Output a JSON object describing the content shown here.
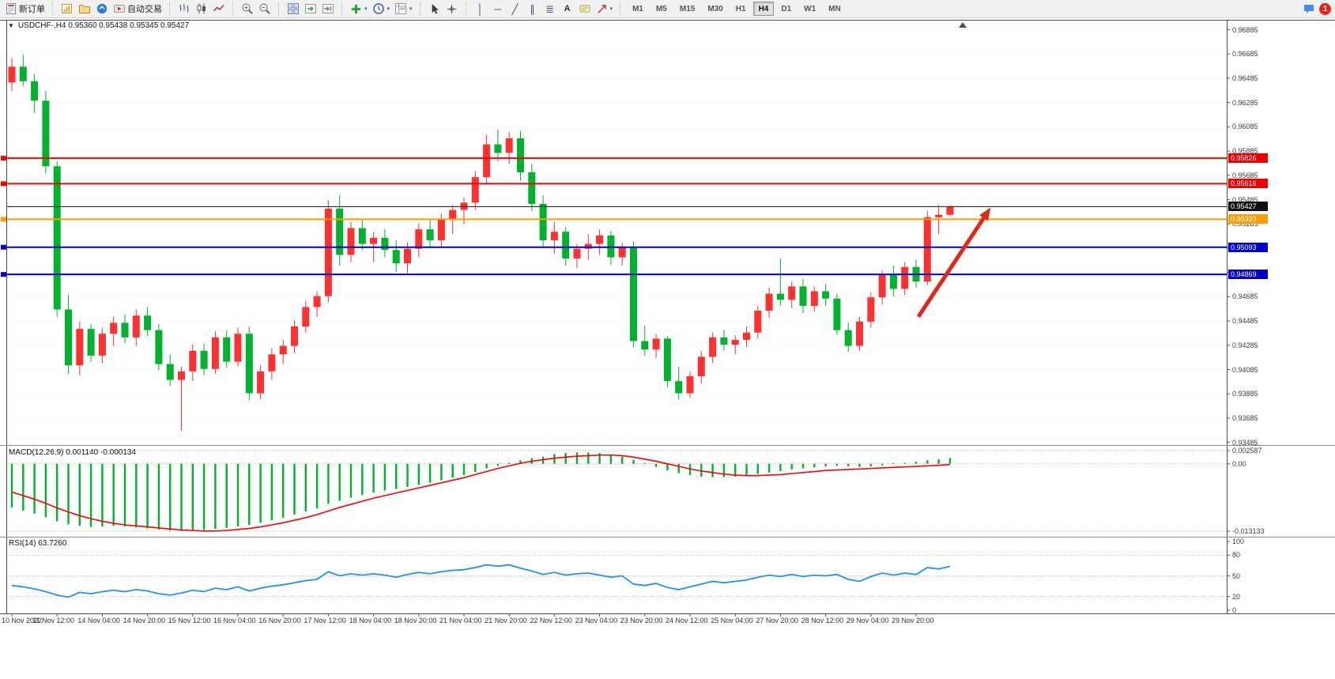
{
  "window": {
    "notification_count": "1"
  },
  "toolbar": {
    "new_order_label": "新订单",
    "autotrading_label": "自动交易",
    "timeframes": [
      "M1",
      "M5",
      "M15",
      "M30",
      "H1",
      "H4",
      "D1",
      "W1",
      "MN"
    ],
    "active_timeframe": "H4"
  },
  "glyphs": {
    "collapse": "▼",
    "dropdown": "▾",
    "vline": "│",
    "hline": "─",
    "trendline": "╱",
    "channel": "∥",
    "fibonacci": "≣",
    "text_tool": "A"
  },
  "chart": {
    "symbol_ohlc": "USDCHF-,H4 0.95360 0.95438 0.95345 0.95427"
  },
  "indicators": {
    "macd_label": "MACD(12,26,9) 0.001140 -0.000134",
    "macd_scale": [
      "0.002587",
      "0.00",
      "-0.013133"
    ],
    "rsi_label": "RSI(14) 63.7260",
    "rsi_scale": [
      "100",
      "80",
      "50",
      "20",
      "0"
    ]
  },
  "price_axis": {
    "ticks": [
      "0.96885",
      "0.96685",
      "0.96485",
      "0.96285",
      "0.96085",
      "0.95885",
      "0.95685",
      "0.95485",
      "0.95285",
      "0.95085",
      "0.94885",
      "0.94685",
      "0.94485",
      "0.94285",
      "0.94085",
      "0.93885",
      "0.93685",
      "0.93485"
    ],
    "badges": [
      {
        "label": "0.95826",
        "value": 0.95826,
        "color": "#ef0000",
        "name": "resistance-1-badge"
      },
      {
        "label": "0.95616",
        "value": 0.95616,
        "color": "#ef0000",
        "name": "resistance-2-badge"
      },
      {
        "label": "0.95427",
        "value": 0.95427,
        "color": "#101010",
        "name": "current-price-badge"
      },
      {
        "label": "0.95323",
        "value": 0.95323,
        "color": "#ff9d00",
        "name": "pivot-badge"
      },
      {
        "label": "0.95093",
        "value": 0.95093,
        "color": "#0000d4",
        "name": "support-1-badge"
      },
      {
        "label": "0.94869",
        "value": 0.94869,
        "color": "#0000d4",
        "name": "support-2-badge"
      }
    ]
  },
  "time_axis": {
    "labels": [
      "10 Nov 2022",
      "11 Nov 12:00",
      "14 Nov 04:00",
      "14 Nov 20:00",
      "15 Nov 12:00",
      "16 Nov 04:00",
      "16 Nov 20:00",
      "17 Nov 12:00",
      "18 Nov 04:00",
      "18 Nov 20:00",
      "21 Nov 04:00",
      "21 Nov 20:00",
      "22 Nov 12:00",
      "23 Nov 04:00",
      "23 Nov 20:00",
      "24 Nov 12:00",
      "25 Nov 04:00",
      "27 Nov 20:00",
      "28 Nov 12:00",
      "29 Nov 04:00",
      "29 Nov 20:00"
    ]
  },
  "colors": {
    "bull": "#ff3030",
    "bear": "#00b22d",
    "macd_hist": "#00b22d",
    "macd_signal": "#ff0000",
    "rsi_line": "#1e90ff",
    "grid": "#e9e9e9",
    "frame": "#4a4a4a",
    "price_line": "#2b2b2b",
    "arrow": "#e02718"
  },
  "chart_data": [
    {
      "type": "candlestick",
      "symbol": "USDCHF-",
      "timeframe": "H4",
      "open": 0.9536,
      "high": 0.95438,
      "low": 0.95345,
      "close": 0.95427,
      "ylim": [
        0.9347,
        0.9696
      ],
      "price_ticks": [
        0.96885,
        0.96685,
        0.96485,
        0.96285,
        0.96085,
        0.95885,
        0.95685,
        0.95485,
        0.95285,
        0.95085,
        0.94885,
        0.94685,
        0.94485,
        0.94285,
        0.94085,
        0.93885,
        0.93685,
        0.93485
      ],
      "candles": [
        [
          0.9645,
          0.9665,
          0.9638,
          0.9658
        ],
        [
          0.9658,
          0.9668,
          0.9642,
          0.9646
        ],
        [
          0.9646,
          0.9652,
          0.962,
          0.963
        ],
        [
          0.963,
          0.9638,
          0.957,
          0.9576
        ],
        [
          0.9576,
          0.958,
          0.9452,
          0.9458
        ],
        [
          0.9458,
          0.947,
          0.9405,
          0.9412
        ],
        [
          0.9412,
          0.9448,
          0.9404,
          0.9442
        ],
        [
          0.9442,
          0.9446,
          0.9415,
          0.942
        ],
        [
          0.942,
          0.9443,
          0.9414,
          0.9438
        ],
        [
          0.9438,
          0.9452,
          0.9428,
          0.9447
        ],
        [
          0.9447,
          0.9454,
          0.943,
          0.9435
        ],
        [
          0.9435,
          0.9458,
          0.9428,
          0.9453
        ],
        [
          0.9453,
          0.946,
          0.9436,
          0.9441
        ],
        [
          0.9441,
          0.9446,
          0.9408,
          0.9413
        ],
        [
          0.9413,
          0.9421,
          0.9395,
          0.94
        ],
        [
          0.94,
          0.9411,
          0.9358,
          0.9407
        ],
        [
          0.9407,
          0.9429,
          0.9399,
          0.9424
        ],
        [
          0.9424,
          0.943,
          0.9404,
          0.9409
        ],
        [
          0.9409,
          0.944,
          0.9405,
          0.9435
        ],
        [
          0.9435,
          0.9441,
          0.941,
          0.9415
        ],
        [
          0.9415,
          0.9443,
          0.9411,
          0.9438
        ],
        [
          0.9438,
          0.9444,
          0.9383,
          0.9389
        ],
        [
          0.9389,
          0.9412,
          0.9384,
          0.9407
        ],
        [
          0.9407,
          0.9426,
          0.94,
          0.9421
        ],
        [
          0.9421,
          0.9433,
          0.9413,
          0.9428
        ],
        [
          0.9428,
          0.9449,
          0.9422,
          0.9444
        ],
        [
          0.9444,
          0.9465,
          0.9439,
          0.946
        ],
        [
          0.946,
          0.9473,
          0.9452,
          0.9469
        ],
        [
          0.9469,
          0.9548,
          0.9464,
          0.9541
        ],
        [
          0.9541,
          0.9552,
          0.9494,
          0.9503
        ],
        [
          0.9503,
          0.953,
          0.9497,
          0.9525
        ],
        [
          0.9525,
          0.9532,
          0.9507,
          0.9512
        ],
        [
          0.9512,
          0.9522,
          0.9497,
          0.9517
        ],
        [
          0.9517,
          0.9524,
          0.9501,
          0.9507
        ],
        [
          0.9507,
          0.9515,
          0.9489,
          0.9496
        ],
        [
          0.9496,
          0.9513,
          0.9488,
          0.9508
        ],
        [
          0.9508,
          0.9529,
          0.9501,
          0.9524
        ],
        [
          0.9524,
          0.9532,
          0.9509,
          0.9515
        ],
        [
          0.9515,
          0.9537,
          0.951,
          0.9532
        ],
        [
          0.9532,
          0.9544,
          0.952,
          0.954
        ],
        [
          0.954,
          0.955,
          0.9528,
          0.9546
        ],
        [
          0.9546,
          0.9572,
          0.954,
          0.9567
        ],
        [
          0.9567,
          0.9602,
          0.9561,
          0.9594
        ],
        [
          0.9594,
          0.9606,
          0.958,
          0.9587
        ],
        [
          0.9587,
          0.9604,
          0.9578,
          0.9599
        ],
        [
          0.9599,
          0.9605,
          0.9564,
          0.9571
        ],
        [
          0.9571,
          0.9578,
          0.9539,
          0.9545
        ],
        [
          0.9545,
          0.9552,
          0.9509,
          0.9515
        ],
        [
          0.9515,
          0.953,
          0.9504,
          0.9522
        ],
        [
          0.9522,
          0.9526,
          0.9494,
          0.95
        ],
        [
          0.95,
          0.9512,
          0.9492,
          0.9508
        ],
        [
          0.9508,
          0.952,
          0.9499,
          0.9512
        ],
        [
          0.9512,
          0.9524,
          0.9503,
          0.9519
        ],
        [
          0.9519,
          0.9523,
          0.9495,
          0.9501
        ],
        [
          0.9501,
          0.9513,
          0.9494,
          0.9509
        ],
        [
          0.9509,
          0.9514,
          0.9427,
          0.9432
        ],
        [
          0.9432,
          0.9445,
          0.942,
          0.9425
        ],
        [
          0.9425,
          0.9438,
          0.9418,
          0.9434
        ],
        [
          0.9434,
          0.9436,
          0.9394,
          0.9399
        ],
        [
          0.9399,
          0.9411,
          0.9384,
          0.9389
        ],
        [
          0.9389,
          0.9407,
          0.9385,
          0.9403
        ],
        [
          0.9403,
          0.9424,
          0.9397,
          0.9419
        ],
        [
          0.9419,
          0.9439,
          0.9414,
          0.9435
        ],
        [
          0.9435,
          0.9441,
          0.9424,
          0.9429
        ],
        [
          0.9429,
          0.9437,
          0.9421,
          0.9433
        ],
        [
          0.9433,
          0.9444,
          0.9427,
          0.9439
        ],
        [
          0.9439,
          0.9461,
          0.9434,
          0.9457
        ],
        [
          0.9457,
          0.9476,
          0.9451,
          0.9471
        ],
        [
          0.9471,
          0.95,
          0.9461,
          0.9466
        ],
        [
          0.9466,
          0.9481,
          0.9459,
          0.9477
        ],
        [
          0.9477,
          0.9483,
          0.9455,
          0.9461
        ],
        [
          0.9461,
          0.9477,
          0.9456,
          0.9473
        ],
        [
          0.9473,
          0.9479,
          0.9461,
          0.9467
        ],
        [
          0.9467,
          0.9471,
          0.9437,
          0.9441
        ],
        [
          0.9441,
          0.9447,
          0.9423,
          0.9428
        ],
        [
          0.9428,
          0.9452,
          0.9424,
          0.9448
        ],
        [
          0.9448,
          0.9472,
          0.9443,
          0.9468
        ],
        [
          0.9468,
          0.949,
          0.9462,
          0.9487
        ],
        [
          0.9487,
          0.9494,
          0.9469,
          0.9475
        ],
        [
          0.9475,
          0.9497,
          0.947,
          0.9493
        ],
        [
          0.9493,
          0.9499,
          0.9476,
          0.9481
        ],
        [
          0.9481,
          0.9539,
          0.9478,
          0.9534
        ],
        [
          0.9534,
          0.9544,
          0.952,
          0.9536
        ],
        [
          0.9536,
          0.95438,
          0.95345,
          0.95427
        ]
      ],
      "hlines": [
        {
          "value": 0.95826,
          "color": "#ff0000",
          "width": 2,
          "name": "resistance-line-1"
        },
        {
          "value": 0.95616,
          "color": "#ff0000",
          "width": 2,
          "name": "resistance-line-2"
        },
        {
          "value": 0.95323,
          "color": "#ff9d00",
          "width": 2,
          "name": "pivot-line"
        },
        {
          "value": 0.95093,
          "color": "#0000d4",
          "width": 2,
          "name": "support-line-1"
        },
        {
          "value": 0.94869,
          "color": "#0000d4",
          "width": 2,
          "name": "support-line-2"
        }
      ],
      "current_price": 0.95427,
      "arrow": {
        "from": [
          80.2,
          0.9452
        ],
        "to": [
          86.6,
          0.9542
        ]
      }
    },
    {
      "type": "bar",
      "name": "MACD(12,26,9)",
      "main_value": 0.00114,
      "signal_value": -0.000134,
      "ylim": [
        -0.013133,
        0.002587
      ],
      "histogram": [
        -0.0085,
        -0.0091,
        -0.0097,
        -0.0104,
        -0.0112,
        -0.0118,
        -0.0121,
        -0.0123,
        -0.0122,
        -0.0121,
        -0.0122,
        -0.0124,
        -0.0126,
        -0.0128,
        -0.013,
        -0.0131,
        -0.013,
        -0.0129,
        -0.0127,
        -0.0125,
        -0.0122,
        -0.0119,
        -0.0115,
        -0.011,
        -0.0105,
        -0.0099,
        -0.0093,
        -0.0087,
        -0.0078,
        -0.0072,
        -0.0066,
        -0.0061,
        -0.0056,
        -0.0052,
        -0.0049,
        -0.0045,
        -0.0041,
        -0.0037,
        -0.0032,
        -0.0027,
        -0.0022,
        -0.0016,
        -0.0009,
        -0.0004,
        0.0002,
        0.0007,
        0.0011,
        0.0014,
        0.0019,
        0.0021,
        0.0022,
        0.0022,
        0.0021,
        0.0018,
        0.0014,
        0.0008,
        0.0001,
        -0.0006,
        -0.0013,
        -0.0018,
        -0.0022,
        -0.0025,
        -0.0026,
        -0.0026,
        -0.0025,
        -0.0023,
        -0.002,
        -0.0017,
        -0.0014,
        -0.0011,
        -0.0009,
        -0.0007,
        -0.0005,
        -0.0004,
        -0.0005,
        -0.0006,
        -0.0005,
        -0.0003,
        -0.0001,
        0.0002,
        0.0004,
        0.0007,
        0.0009,
        0.00114
      ],
      "signal": [
        -0.0055,
        -0.0062,
        -0.0069,
        -0.0077,
        -0.0086,
        -0.0094,
        -0.0101,
        -0.0107,
        -0.0112,
        -0.0116,
        -0.0119,
        -0.0121,
        -0.0123,
        -0.0125,
        -0.0127,
        -0.0129,
        -0.013,
        -0.0131,
        -0.0131,
        -0.013,
        -0.0128,
        -0.0126,
        -0.0123,
        -0.0119,
        -0.0115,
        -0.011,
        -0.0105,
        -0.0099,
        -0.0092,
        -0.0085,
        -0.0079,
        -0.0073,
        -0.0067,
        -0.0062,
        -0.0057,
        -0.0052,
        -0.0047,
        -0.0042,
        -0.0037,
        -0.0032,
        -0.0027,
        -0.0021,
        -0.0015,
        -0.0009,
        -0.0004,
        0.0001,
        0.0005,
        0.0008,
        0.0011,
        0.0013,
        0.0015,
        0.0016,
        0.0017,
        0.0017,
        0.0016,
        0.0013,
        0.0009,
        0.0005,
        0.0,
        -0.0005,
        -0.001,
        -0.0014,
        -0.0017,
        -0.002,
        -0.0022,
        -0.0023,
        -0.0023,
        -0.0022,
        -0.0021,
        -0.0019,
        -0.0017,
        -0.0015,
        -0.0013,
        -0.0012,
        -0.0011,
        -0.001,
        -0.0009,
        -0.0008,
        -0.0007,
        -0.0006,
        -0.0005,
        -0.0004,
        -0.0003,
        -0.000134
      ]
    },
    {
      "type": "line",
      "name": "RSI(14)",
      "value": 63.726,
      "ylim": [
        0,
        100
      ],
      "levels": [
        80,
        50,
        20
      ],
      "values": [
        36,
        34,
        31,
        27,
        22,
        19,
        26,
        24,
        27,
        29,
        27,
        30,
        28,
        24,
        22,
        25,
        29,
        27,
        32,
        30,
        34,
        28,
        32,
        35,
        37,
        40,
        43,
        45,
        56,
        50,
        53,
        51,
        53,
        51,
        48,
        52,
        55,
        53,
        56,
        58,
        59,
        62,
        66,
        64,
        66,
        61,
        57,
        52,
        55,
        51,
        53,
        54,
        51,
        48,
        50,
        38,
        36,
        39,
        33,
        30,
        34,
        38,
        42,
        40,
        42,
        44,
        48,
        51,
        49,
        52,
        49,
        51,
        50,
        52,
        45,
        42,
        49,
        54,
        51,
        54,
        52,
        62,
        60,
        63.726
      ]
    }
  ]
}
